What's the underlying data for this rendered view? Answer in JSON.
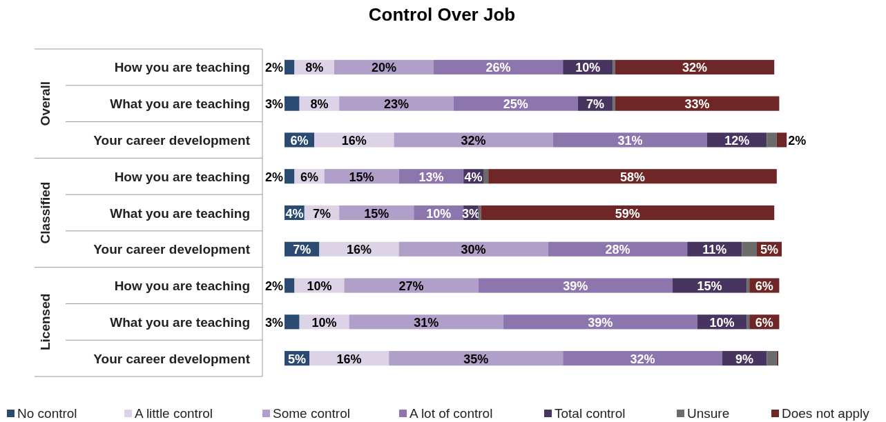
{
  "chart_data": {
    "type": "bar",
    "orientation": "horizontal",
    "stacked": true,
    "title": "Control Over Job",
    "categories": [
      "How you are teaching",
      "What you are teaching",
      "Your career development",
      "How you are teaching",
      "What you are teaching",
      "Your career development",
      "How you are teaching",
      "What you are teaching",
      "Your career development"
    ],
    "annotations": [
      "Overall",
      "Classified",
      "Licensed"
    ],
    "series": [
      {
        "name": "No control",
        "color": "#2a4a72",
        "values": [
          2,
          3,
          6,
          2,
          4,
          7,
          2,
          3,
          5
        ],
        "value_labels": [
          "2%",
          "3%",
          "6%",
          "2%",
          "4%",
          "7%",
          "2%",
          "3%",
          "5%"
        ]
      },
      {
        "name": "A little control",
        "color": "#dcd3e6",
        "values": [
          8,
          8,
          16,
          6,
          7,
          16,
          10,
          10,
          16
        ],
        "value_labels": [
          "8%",
          "8%",
          "16%",
          "6%",
          "7%",
          "16%",
          "10%",
          "10%",
          "16%"
        ]
      },
      {
        "name": "Some control",
        "color": "#b09fc9",
        "values": [
          20,
          23,
          32,
          15,
          15,
          30,
          27,
          31,
          35
        ],
        "value_labels": [
          "20%",
          "23%",
          "32%",
          "15%",
          "15%",
          "30%",
          "27%",
          "31%",
          "35%"
        ]
      },
      {
        "name": "A lot of control",
        "color": "#8d75ad",
        "values": [
          26,
          25,
          31,
          13,
          10,
          28,
          39,
          39,
          32
        ],
        "value_labels": [
          "26%",
          "25%",
          "31%",
          "13%",
          "10%",
          "28%",
          "39%",
          "39%",
          "32%"
        ]
      },
      {
        "name": "Total control",
        "color": "#47355f",
        "values": [
          10,
          7,
          12,
          4,
          3,
          11,
          15,
          10,
          9
        ],
        "value_labels": [
          "10%",
          "7%",
          "12%",
          "4%",
          "3%",
          "11%",
          "15%",
          "10%",
          "9%"
        ]
      },
      {
        "name": "Unsure",
        "color": "#6b6b6b",
        "values": [
          0.5,
          0.5,
          2,
          1,
          0.5,
          3,
          0.5,
          0.5,
          2
        ]
      },
      {
        "name": "Does not apply",
        "color": "#6e2626",
        "values": [
          32,
          33,
          2,
          58,
          59,
          5,
          6,
          6,
          0.3
        ],
        "value_labels": [
          "32%",
          "33%",
          "2%",
          "58%",
          "59%",
          "5%",
          "6%",
          "6%",
          null
        ]
      }
    ],
    "legend": "bottom"
  }
}
